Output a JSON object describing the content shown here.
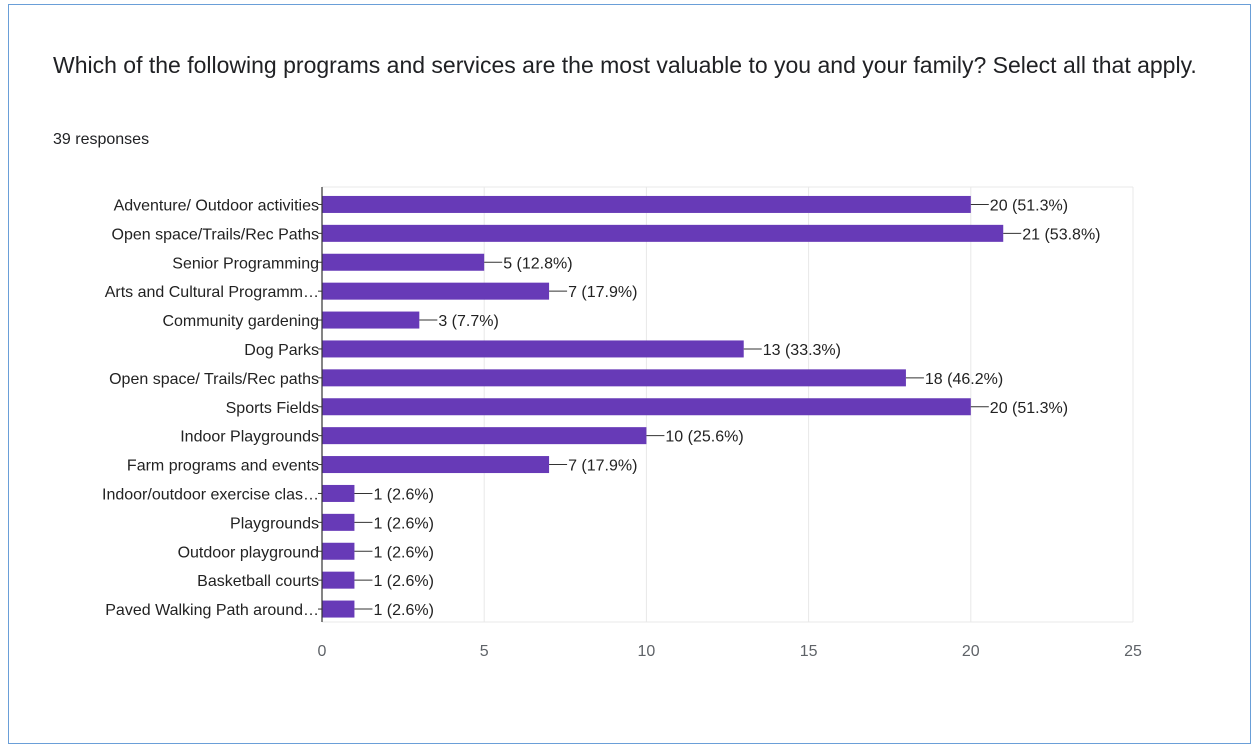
{
  "question": "Which of the following programs and services are the most valuable to you and your family? Select all that apply.",
  "responses_label": "39 responses",
  "colors": {
    "bar": "#673ab7",
    "grid": "#e8e8e8",
    "axis": "#333333",
    "border": "#6a9fd8"
  },
  "chart_data": {
    "type": "bar",
    "orientation": "horizontal",
    "title": "",
    "xlabel": "",
    "ylabel": "",
    "xlim": [
      0,
      25
    ],
    "xticks": [
      0,
      5,
      10,
      15,
      20,
      25
    ],
    "grid": true,
    "categories": [
      "Adventure/ Outdoor activities",
      "Open space/Trails/Rec Paths",
      "Senior Programming",
      "Arts and Cultural Programm…",
      "Community gardening",
      "Dog Parks",
      "Open space/ Trails/Rec paths",
      "Sports Fields",
      "Indoor Playgrounds",
      "Farm programs and events",
      "Indoor/outdoor exercise clas…",
      "Playgrounds",
      "Outdoor playground",
      "Basketball courts",
      "Paved Walking Path around…"
    ],
    "values": [
      20,
      21,
      5,
      7,
      3,
      13,
      18,
      20,
      10,
      7,
      1,
      1,
      1,
      1,
      1
    ],
    "data_labels": [
      "20 (51.3%)",
      "21 (53.8%)",
      "5 (12.8%)",
      "7 (17.9%)",
      "3 (7.7%)",
      "13 (33.3%)",
      "18 (46.2%)",
      "20 (51.3%)",
      "10 (25.6%)",
      "7 (17.9%)",
      "1 (2.6%)",
      "1 (2.6%)",
      "1 (2.6%)",
      "1 (2.6%)",
      "1 (2.6%)"
    ]
  }
}
